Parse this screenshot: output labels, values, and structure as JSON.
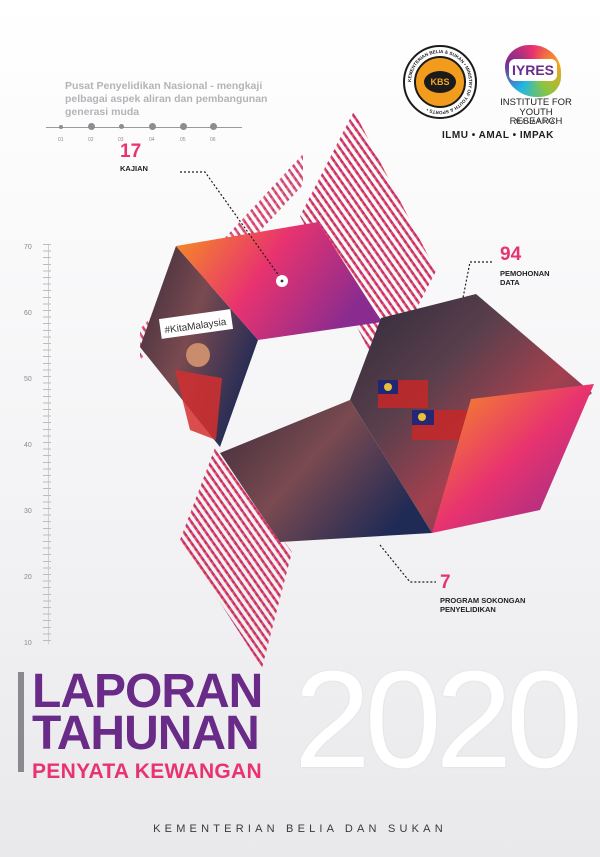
{
  "intro": {
    "text": "Pusat Penyelidikan Nasional - mengkaji pelbagai aspek aliran dan pembangunan generasi muda",
    "timeline_labels": [
      "01",
      "02",
      "03",
      "04",
      "05",
      "06"
    ]
  },
  "stats": [
    {
      "value": "17",
      "label": "KAJIAN"
    },
    {
      "value": "94",
      "label_lines": [
        "PEMOHONAN",
        "DATA"
      ]
    },
    {
      "value": "7",
      "label_lines": [
        "PROGRAM SOKONGAN",
        "PENYELIDIKAN"
      ]
    }
  ],
  "ruler_labels": [
    "70",
    "60",
    "50",
    "40",
    "30",
    "20",
    "10"
  ],
  "photo_sign_text": "#KitaMalaysia",
  "logos": {
    "kbs": "KBS",
    "kbs_ring_text": "KEMENTERIAN BELIA & SUKAN • MINISTRY OF YOUTH & SPORTS •",
    "iyres": "IYRES",
    "iyres_name_lines": [
      "INSTITUTE FOR",
      "YOUTH RESEARCH"
    ],
    "iyres_country": "MALAYSIA",
    "motto": "ILMU • AMAL • IMPAK"
  },
  "title": {
    "line1": "LAPORAN",
    "line2": "TAHUNAN",
    "subtitle": "PENYATA KEWANGAN",
    "year": "2020"
  },
  "footer": {
    "ministry": "KEMENTERIAN BELIA DAN SUKAN"
  },
  "colors": {
    "purple": "#6a2b88",
    "pink": "#e8336f",
    "orange": "#f7931e"
  }
}
